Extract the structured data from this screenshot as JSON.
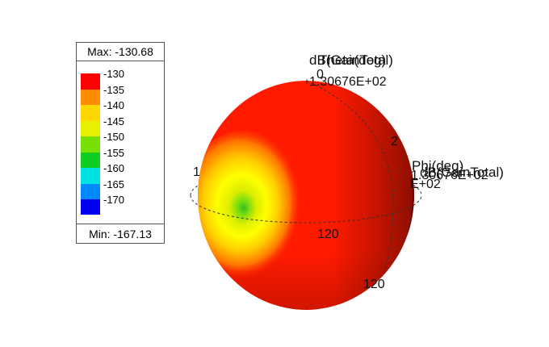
{
  "chart_data": {
    "type": "heatmap",
    "variant": "3d-radiation-pattern-sphere",
    "quantity_label": "dB(GainTotal)",
    "max_label": "Max: -130.68",
    "min_label": "Min: -167.13",
    "max_value": -130.68,
    "min_value": -167.13,
    "colorbar": {
      "ticks": [
        -130,
        -135,
        -140,
        -145,
        -150,
        -155,
        -160,
        -165,
        -170
      ],
      "colors": [
        "#ff0000",
        "#ff8c00",
        "#ffd700",
        "#e8f000",
        "#77e000",
        "#11cc22",
        "#00e2e2",
        "#0088ff",
        "#0000ee"
      ]
    },
    "axes": {
      "theta": {
        "label": "Theta(deg)",
        "ticks": [
          "0",
          "2",
          "120"
        ]
      },
      "phi": {
        "label": "Phi(deg)",
        "ticks": [
          "1",
          "120"
        ]
      }
    },
    "axis_value_labels": [
      "1.30676E+02",
      "E+02"
    ],
    "overlapping_labels": [
      "dB(GainTotal)",
      "Theta(deg)",
      "Phi(deg)",
      "dB(GainTotal)"
    ]
  },
  "colors": {
    "sphere_main": "#ff1a00",
    "sphere_dark": "#990000",
    "hotspot_yellow": "#ffff00",
    "hotspot_green": "#44cc22"
  }
}
